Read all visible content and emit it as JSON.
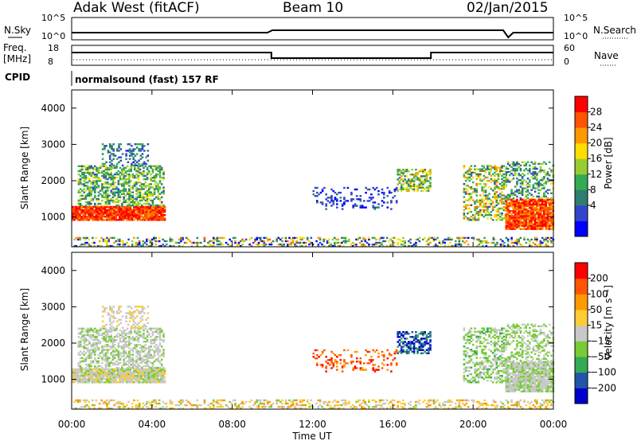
{
  "header": {
    "radar": "Adak West (fitACF)",
    "beam": "Beam 10",
    "date": "02/Jan/2015"
  },
  "noise_panel": {
    "left_label": "N.Sky",
    "right_label": "N.Search",
    "left_ticks": [
      "10^5",
      "10^0"
    ],
    "right_ticks": [
      "10^5",
      "10^0"
    ]
  },
  "freq_panel": {
    "left_label_line1": "Freq.",
    "left_label_line2": "[MHz]",
    "left_ticks": [
      "18",
      "8"
    ],
    "right_label": "Nave",
    "right_ticks": [
      "60",
      "0"
    ]
  },
  "cpid_panel": {
    "label": "CPID",
    "text": "normalsound (fast) 157 RF"
  },
  "colors": {
    "power_scale": [
      "#0000ff",
      "#3344cc",
      "#2e7d6e",
      "#33aa55",
      "#99cc33",
      "#ffdd00",
      "#ff9900",
      "#ff5500",
      "#ff0000"
    ],
    "velocity_scale": [
      "#0000cc",
      "#2255aa",
      "#33aa55",
      "#77cc33",
      "#c8c8c8",
      "#ffcc33",
      "#ff9900",
      "#ff5500",
      "#ff0000"
    ]
  },
  "chart_data": [
    {
      "type": "heatmap",
      "panel": "power",
      "ylabel": "Slant Range [km]",
      "ylim": [
        180,
        4500
      ],
      "yticks": [
        "4000",
        "3000",
        "2000",
        "1000"
      ],
      "colorbar_label": "Power [dB]",
      "colorbar_ticks": [
        "28",
        "24",
        "20",
        "16",
        "12",
        "8",
        "4"
      ],
      "colorbar_range": [
        0,
        32
      ]
    },
    {
      "type": "heatmap",
      "panel": "velocity",
      "ylabel": "Slant Range [km]",
      "ylim": [
        180,
        4500
      ],
      "yticks": [
        "4000",
        "3000",
        "2000",
        "1000"
      ],
      "colorbar_label": "Velocity [m s^-1]",
      "colorbar_ticks": [
        "200",
        "100",
        "50",
        "15",
        "−15",
        "−50",
        "−100",
        "−200"
      ],
      "xlabel": "Time UT",
      "xticks": [
        "00:00",
        "04:00",
        "08:00",
        "12:00",
        "16:00",
        "20:00",
        "00:00"
      ]
    }
  ]
}
